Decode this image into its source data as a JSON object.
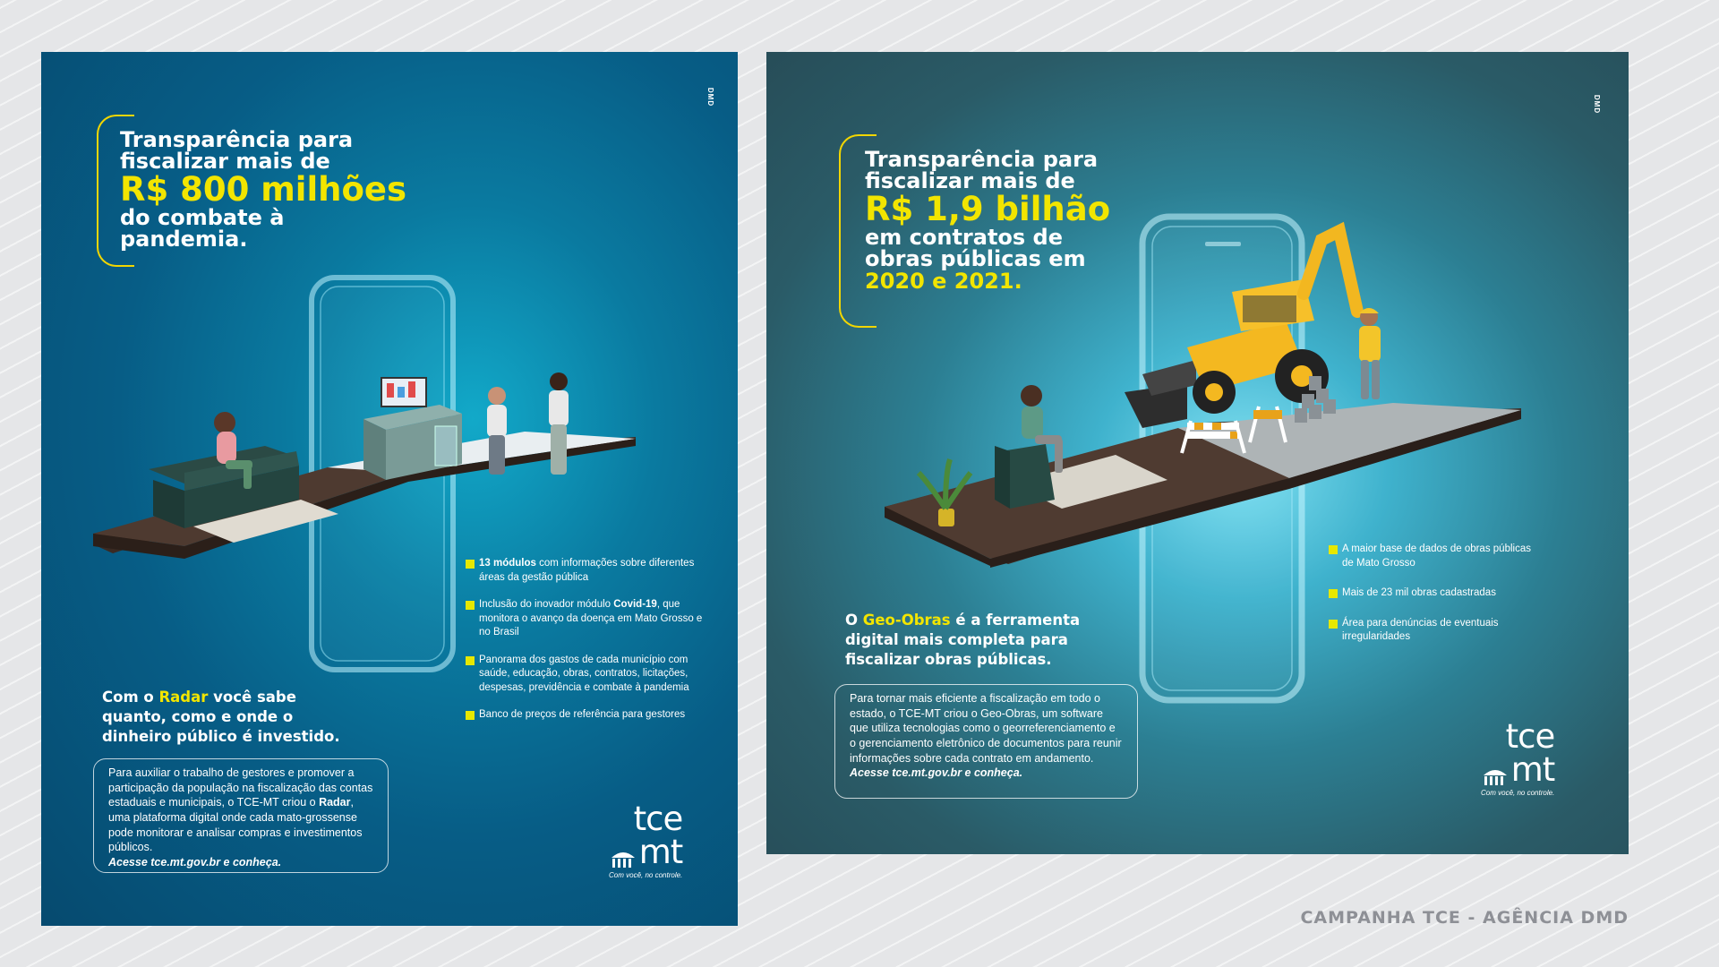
{
  "caption": "CAMPANHA TCE - AGÊNCIA DMD",
  "agency_mark": "DMD",
  "colors": {
    "accent": "#f2e500",
    "panel1": "#075d86",
    "panel2": "#2c6f80"
  },
  "panel1": {
    "headline": {
      "l1": "Transparência para",
      "l2": "fiscalizar mais de",
      "big": "R$ 800 milhões",
      "l3": "do combate à",
      "l4": "pandemia."
    },
    "bullets": [
      {
        "b": "13 módulos",
        "t": " com informações sobre diferentes áreas da gestão pública"
      },
      {
        "t1": "Inclusão do inovador módulo ",
        "b": "Covid-19",
        "t2": ", que monitora o avanço da doença em Mato Grosso e no Brasil"
      },
      {
        "t": "Panorama dos gastos de cada município com saúde, educação, obras, contratos, licitações, despesas, previdência e combate à pandemia"
      },
      {
        "t": "Banco de preços de referência para gestores"
      }
    ],
    "claim": {
      "pre": "Com o ",
      "hl": "Radar",
      "post": " você sabe quanto, como e onde o dinheiro público é investido."
    },
    "box": {
      "t1": "Para auxiliar o trabalho de gestores e promover a participação da população na fiscalização das contas estaduais e municipais, o TCE-MT criou o ",
      "b": "Radar",
      "t2": ", uma plataforma digital onde cada mato-grossense pode monitorar e analisar compras e investimentos públicos.",
      "em": "Acesse tce.mt.gov.br e conheça."
    }
  },
  "panel2": {
    "headline": {
      "l1": "Transparência para",
      "l2": "fiscalizar mais de",
      "big": "R$ 1,9 bilhão",
      "l3": "em contratos de",
      "l4": "obras públicas em",
      "l5": "2020 e 2021."
    },
    "bullets": [
      {
        "t": "A maior base de dados de obras públicas de Mato Grosso"
      },
      {
        "t": "Mais de 23 mil obras cadastradas"
      },
      {
        "t": "Área para denúncias de eventuais irregularidades"
      }
    ],
    "claim": {
      "pre": "O ",
      "hl": "Geo-Obras",
      "post": " é a ferramenta digital mais completa para fiscalizar obras públicas."
    },
    "box": {
      "t": "Para tornar mais eficiente a fiscalização em todo o estado, o TCE-MT criou o Geo-Obras, um software que utiliza tecnologias como o georreferenciamento e o gerenciamento eletrônico de documentos para reunir informações sobre cada contrato em andamento.",
      "em": "Acesse tce.mt.gov.br e conheça."
    }
  },
  "logo": {
    "tce": "tce",
    "mt": "mt",
    "slogan": "Com você, no controle."
  }
}
